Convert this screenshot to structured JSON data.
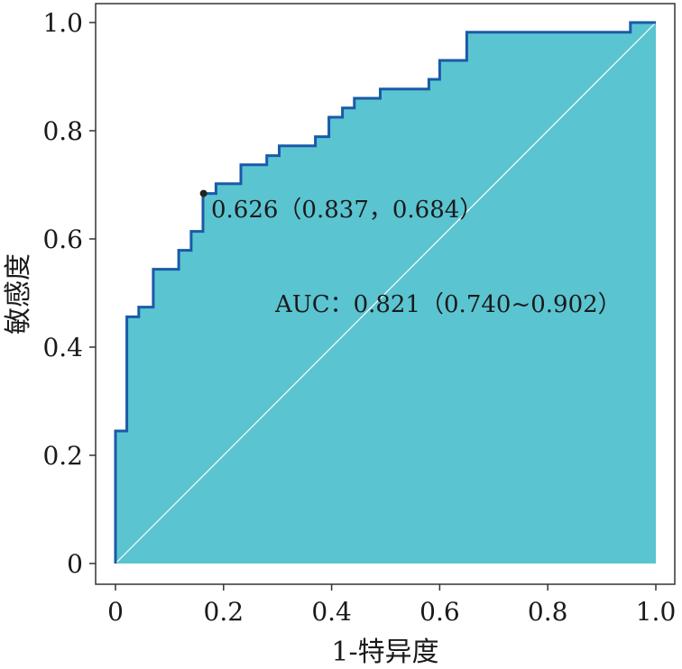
{
  "chart_data": {
    "type": "line",
    "subtype": "roc-step-curve",
    "title": "",
    "xlabel": "1-特异度",
    "ylabel": "敏感度",
    "xlim": [
      0,
      1
    ],
    "ylim": [
      0,
      1
    ],
    "xticks": [
      {
        "value": 0,
        "label": "0"
      },
      {
        "value": 0.2,
        "label": "0.2"
      },
      {
        "value": 0.4,
        "label": "0.4"
      },
      {
        "value": 0.6,
        "label": "0.6"
      },
      {
        "value": 0.8,
        "label": "0.8"
      },
      {
        "value": 1.0,
        "label": "1.0"
      }
    ],
    "yticks": [
      {
        "value": 0,
        "label": "0"
      },
      {
        "value": 0.2,
        "label": "0.2"
      },
      {
        "value": 0.4,
        "label": "0.4"
      },
      {
        "value": 0.6,
        "label": "0.6"
      },
      {
        "value": 0.8,
        "label": "0.8"
      },
      {
        "value": 1.0,
        "label": "1.0"
      }
    ],
    "grid": false,
    "legend": "none",
    "colors": {
      "fill": "#5bc4d1",
      "curve": "#1a5aa8",
      "diagonal": "#ffffff",
      "frame": "#333333",
      "point": "#222222"
    },
    "series": [
      {
        "x": [
          0,
          0,
          0.021,
          0.021,
          0.043,
          0.043,
          0.07,
          0.07,
          0.117,
          0.117,
          0.14,
          0.14,
          0.162,
          0.162,
          0.186,
          0.186,
          0.232,
          0.232,
          0.28,
          0.28,
          0.303,
          0.303,
          0.37,
          0.37,
          0.395,
          0.395,
          0.42,
          0.42,
          0.442,
          0.442,
          0.49,
          0.49,
          0.58,
          0.58,
          0.6,
          0.6,
          0.65,
          0.65,
          0.953,
          0.953,
          1.0
        ],
        "y": [
          0,
          0.245,
          0.245,
          0.456,
          0.456,
          0.474,
          0.474,
          0.544,
          0.544,
          0.579,
          0.579,
          0.614,
          0.614,
          0.684,
          0.684,
          0.702,
          0.702,
          0.737,
          0.737,
          0.754,
          0.754,
          0.772,
          0.772,
          0.789,
          0.789,
          0.825,
          0.825,
          0.842,
          0.842,
          0.86,
          0.86,
          0.877,
          0.877,
          0.895,
          0.895,
          0.93,
          0.93,
          0.982,
          0.982,
          1.0,
          1.0
        ]
      }
    ],
    "reference_line": {
      "x": [
        0,
        1
      ],
      "y": [
        0,
        1
      ]
    },
    "cutoff_point": {
      "x": 0.163,
      "y": 0.684,
      "label": "0.626（0.837，0.684）"
    },
    "auc_label": "AUC：0.821（0.740~0.902）"
  }
}
